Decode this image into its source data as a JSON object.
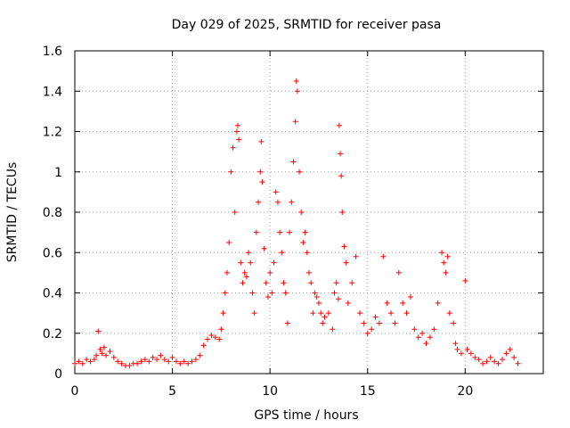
{
  "chart_data": {
    "type": "scatter",
    "title": "Day 029 of 2025, SRMTID for receiver pasa",
    "xlabel": "GPS time / hours",
    "ylabel": "SRMTID / TECUs",
    "xlim": [
      0,
      24
    ],
    "ylim": [
      0,
      1.6
    ],
    "xticks": [
      0,
      5,
      10,
      15,
      20
    ],
    "xtick_labels": [
      "0",
      "5",
      "10",
      "15",
      "20"
    ],
    "yticks": [
      0,
      0.2,
      0.4,
      0.6,
      0.8,
      1.0,
      1.2,
      1.4,
      1.6
    ],
    "ytick_labels": [
      "0",
      "0.2",
      "0.4",
      "0.6",
      "0.8",
      "1",
      "1.2",
      "1.4",
      "1.6"
    ],
    "grid": true,
    "marker": "+",
    "marker_color": "#ff0000",
    "series": [
      {
        "name": "SRMTID",
        "points": [
          [
            0.0,
            0.05
          ],
          [
            0.2,
            0.06
          ],
          [
            0.4,
            0.05
          ],
          [
            0.6,
            0.07
          ],
          [
            0.8,
            0.06
          ],
          [
            1.0,
            0.07
          ],
          [
            1.1,
            0.09
          ],
          [
            1.2,
            0.21
          ],
          [
            1.3,
            0.12
          ],
          [
            1.4,
            0.1
          ],
          [
            1.5,
            0.13
          ],
          [
            1.6,
            0.09
          ],
          [
            1.8,
            0.11
          ],
          [
            2.0,
            0.08
          ],
          [
            2.2,
            0.06
          ],
          [
            2.4,
            0.05
          ],
          [
            2.6,
            0.04
          ],
          [
            2.8,
            0.04
          ],
          [
            3.0,
            0.05
          ],
          [
            3.2,
            0.05
          ],
          [
            3.4,
            0.06
          ],
          [
            3.6,
            0.07
          ],
          [
            3.8,
            0.06
          ],
          [
            4.0,
            0.08
          ],
          [
            4.2,
            0.07
          ],
          [
            4.4,
            0.09
          ],
          [
            4.6,
            0.07
          ],
          [
            4.8,
            0.06
          ],
          [
            5.0,
            0.08
          ],
          [
            5.2,
            0.06
          ],
          [
            5.4,
            0.05
          ],
          [
            5.6,
            0.06
          ],
          [
            5.8,
            0.05
          ],
          [
            6.0,
            0.06
          ],
          [
            6.2,
            0.07
          ],
          [
            6.4,
            0.09
          ],
          [
            6.6,
            0.14
          ],
          [
            6.8,
            0.17
          ],
          [
            7.0,
            0.19
          ],
          [
            7.2,
            0.18
          ],
          [
            7.4,
            0.17
          ],
          [
            7.5,
            0.22
          ],
          [
            7.6,
            0.3
          ],
          [
            7.7,
            0.4
          ],
          [
            7.8,
            0.5
          ],
          [
            7.9,
            0.65
          ],
          [
            8.0,
            1.0
          ],
          [
            8.1,
            1.12
          ],
          [
            8.2,
            0.8
          ],
          [
            8.3,
            1.2
          ],
          [
            8.35,
            1.23
          ],
          [
            8.4,
            1.16
          ],
          [
            8.5,
            0.55
          ],
          [
            8.6,
            0.45
          ],
          [
            8.7,
            0.5
          ],
          [
            8.8,
            0.48
          ],
          [
            8.9,
            0.6
          ],
          [
            9.0,
            0.55
          ],
          [
            9.1,
            0.4
          ],
          [
            9.2,
            0.3
          ],
          [
            9.3,
            0.7
          ],
          [
            9.4,
            0.85
          ],
          [
            9.5,
            1.0
          ],
          [
            9.55,
            1.15
          ],
          [
            9.6,
            0.95
          ],
          [
            9.7,
            0.62
          ],
          [
            9.8,
            0.45
          ],
          [
            9.9,
            0.38
          ],
          [
            10.0,
            0.5
          ],
          [
            10.1,
            0.4
          ],
          [
            10.2,
            0.55
          ],
          [
            10.3,
            0.9
          ],
          [
            10.4,
            0.85
          ],
          [
            10.5,
            0.7
          ],
          [
            10.6,
            0.6
          ],
          [
            10.7,
            0.45
          ],
          [
            10.8,
            0.4
          ],
          [
            10.9,
            0.25
          ],
          [
            11.0,
            0.7
          ],
          [
            11.1,
            0.85
          ],
          [
            11.2,
            1.05
          ],
          [
            11.3,
            1.25
          ],
          [
            11.35,
            1.45
          ],
          [
            11.4,
            1.4
          ],
          [
            11.5,
            1.0
          ],
          [
            11.6,
            0.8
          ],
          [
            11.7,
            0.65
          ],
          [
            11.8,
            0.7
          ],
          [
            11.9,
            0.6
          ],
          [
            12.0,
            0.5
          ],
          [
            12.1,
            0.45
          ],
          [
            12.2,
            0.3
          ],
          [
            12.3,
            0.4
          ],
          [
            12.4,
            0.38
          ],
          [
            12.5,
            0.35
          ],
          [
            12.6,
            0.3
          ],
          [
            12.7,
            0.25
          ],
          [
            12.8,
            0.28
          ],
          [
            13.0,
            0.3
          ],
          [
            13.2,
            0.22
          ],
          [
            13.3,
            0.4
          ],
          [
            13.4,
            0.45
          ],
          [
            13.5,
            0.37
          ],
          [
            13.55,
            1.23
          ],
          [
            13.6,
            1.09
          ],
          [
            13.65,
            0.98
          ],
          [
            13.7,
            0.8
          ],
          [
            13.8,
            0.63
          ],
          [
            13.9,
            0.55
          ],
          [
            14.0,
            0.35
          ],
          [
            14.2,
            0.45
          ],
          [
            14.4,
            0.58
          ],
          [
            14.6,
            0.3
          ],
          [
            14.8,
            0.25
          ],
          [
            15.0,
            0.2
          ],
          [
            15.2,
            0.22
          ],
          [
            15.4,
            0.28
          ],
          [
            15.6,
            0.25
          ],
          [
            15.8,
            0.58
          ],
          [
            16.0,
            0.35
          ],
          [
            16.2,
            0.3
          ],
          [
            16.4,
            0.25
          ],
          [
            16.6,
            0.5
          ],
          [
            16.8,
            0.35
          ],
          [
            17.0,
            0.3
          ],
          [
            17.2,
            0.38
          ],
          [
            17.4,
            0.22
          ],
          [
            17.6,
            0.18
          ],
          [
            17.8,
            0.2
          ],
          [
            18.0,
            0.15
          ],
          [
            18.2,
            0.18
          ],
          [
            18.4,
            0.22
          ],
          [
            18.6,
            0.35
          ],
          [
            18.8,
            0.6
          ],
          [
            18.9,
            0.55
          ],
          [
            19.0,
            0.5
          ],
          [
            19.1,
            0.58
          ],
          [
            19.2,
            0.3
          ],
          [
            19.4,
            0.25
          ],
          [
            19.5,
            0.15
          ],
          [
            19.6,
            0.12
          ],
          [
            19.8,
            0.1
          ],
          [
            20.0,
            0.46
          ],
          [
            20.1,
            0.12
          ],
          [
            20.3,
            0.1
          ],
          [
            20.5,
            0.08
          ],
          [
            20.7,
            0.07
          ],
          [
            20.9,
            0.05
          ],
          [
            21.1,
            0.06
          ],
          [
            21.3,
            0.08
          ],
          [
            21.5,
            0.06
          ],
          [
            21.7,
            0.05
          ],
          [
            21.9,
            0.07
          ],
          [
            22.1,
            0.1
          ],
          [
            22.3,
            0.12
          ],
          [
            22.5,
            0.08
          ],
          [
            22.7,
            0.05
          ]
        ]
      }
    ]
  }
}
